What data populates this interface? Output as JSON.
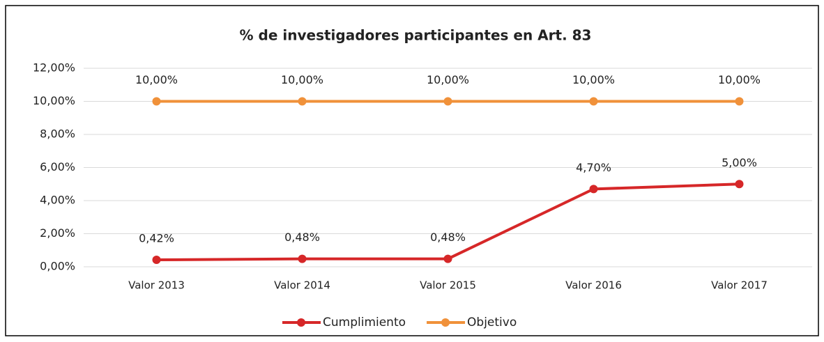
{
  "chart_data": {
    "type": "line",
    "title": "% de investigadores participantes en Art. 83",
    "categories": [
      "Valor 2013",
      "Valor 2014",
      "Valor 2015",
      "Valor 2016",
      "Valor 2017"
    ],
    "series": [
      {
        "name": "Cumplimiento",
        "color": "#d62728",
        "values": [
          0.42,
          0.48,
          0.48,
          4.7,
          5.0
        ],
        "value_labels": [
          "0,42%",
          "0,48%",
          "0,48%",
          "4,70%",
          "5,00%"
        ]
      },
      {
        "name": "Objetivo",
        "color": "#f0913a",
        "values": [
          10,
          10,
          10,
          10,
          10
        ],
        "value_labels": [
          "10,00%",
          "10,00%",
          "10,00%",
          "10,00%",
          "10,00%"
        ]
      }
    ],
    "ylim": [
      0,
      12
    ],
    "yticks": [
      {
        "value": 0,
        "label": "0,00%"
      },
      {
        "value": 2,
        "label": "2,00%"
      },
      {
        "value": 4,
        "label": "4,00%"
      },
      {
        "value": 6,
        "label": "6,00%"
      },
      {
        "value": 8,
        "label": "8,00%"
      },
      {
        "value": 10,
        "label": "10,00%"
      },
      {
        "value": 12,
        "label": "12,00%"
      }
    ],
    "grid": true,
    "legend": "bottom"
  }
}
